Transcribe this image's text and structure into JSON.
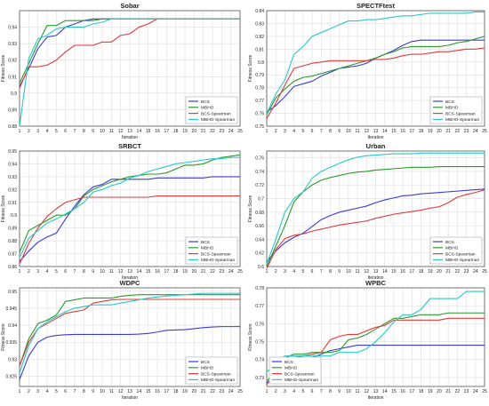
{
  "figure": {
    "xlabel": "Iteration",
    "ylabel": "Fitness Score"
  },
  "colors": {
    "BCS": "#3a3ad8",
    "MBHO": "#2a9a2a",
    "BCS-Spearman": "#e03a3a",
    "MBHO-Spearman": "#28c8c8"
  },
  "chart_data": [
    {
      "type": "line",
      "title": "Sobar",
      "xlabel": "Iteration",
      "ylabel": "Fitness Score",
      "x": [
        1,
        2,
        3,
        4,
        5,
        6,
        7,
        8,
        9,
        10,
        11,
        12,
        13,
        14,
        15,
        16,
        17,
        18,
        19,
        20,
        21,
        22,
        23,
        24,
        25
      ],
      "ylim": [
        0.88,
        0.95
      ],
      "yticks": [
        "0.88",
        "0.89",
        "0.9",
        "0.91",
        "0.92",
        "0.93",
        "0.94"
      ],
      "ytick_values": [
        0.88,
        0.89,
        0.9,
        0.91,
        0.92,
        0.93,
        0.94
      ],
      "legend": "bottom-right",
      "series": [
        {
          "name": "BCS",
          "values": [
            0.904,
            0.915,
            0.927,
            0.934,
            0.935,
            0.94,
            0.942,
            0.944,
            0.945,
            0.945,
            0.945,
            0.945,
            0.945,
            0.945,
            0.945,
            0.945,
            0.945,
            0.945,
            0.945,
            0.945,
            0.945,
            0.945,
            0.945,
            0.945,
            0.945
          ]
        },
        {
          "name": "MBHO",
          "values": [
            0.906,
            0.918,
            0.93,
            0.941,
            0.941,
            0.944,
            0.944,
            0.944,
            0.944,
            0.945,
            0.945,
            0.945,
            0.945,
            0.945,
            0.945,
            0.945,
            0.945,
            0.945,
            0.945,
            0.945,
            0.945,
            0.945,
            0.945,
            0.945,
            0.945
          ]
        },
        {
          "name": "BCS-Spearman",
          "values": [
            0.903,
            0.916,
            0.916,
            0.917,
            0.92,
            0.925,
            0.929,
            0.929,
            0.929,
            0.931,
            0.931,
            0.935,
            0.936,
            0.94,
            0.942,
            0.945,
            0.945,
            0.945,
            0.945,
            0.945,
            0.945,
            0.945,
            0.945,
            0.945,
            0.945
          ]
        },
        {
          "name": "MBHO-Spearman",
          "values": [
            0.88,
            0.921,
            0.933,
            0.935,
            0.939,
            0.94,
            0.94,
            0.94,
            0.942,
            0.943,
            0.945,
            0.945,
            0.945,
            0.945,
            0.945,
            0.945,
            0.945,
            0.945,
            0.945,
            0.945,
            0.945,
            0.945,
            0.945,
            0.945,
            0.945
          ]
        }
      ]
    },
    {
      "type": "line",
      "title": "SPECTFtest",
      "xlabel": "Iteration",
      "ylabel": "Fitness Score",
      "x": [
        1,
        2,
        3,
        4,
        5,
        6,
        7,
        8,
        9,
        10,
        11,
        12,
        13,
        14,
        15,
        16,
        17,
        18,
        19,
        20,
        21,
        22,
        23,
        24,
        25
      ],
      "ylim": [
        0.75,
        0.84
      ],
      "yticks": [
        "0.75",
        "0.76",
        "0.77",
        "0.78",
        "0.79",
        "0.8",
        "0.81",
        "0.82",
        "0.83",
        "0.84"
      ],
      "ytick_values": [
        0.75,
        0.76,
        0.77,
        0.78,
        0.79,
        0.8,
        0.81,
        0.82,
        0.83,
        0.84
      ],
      "legend": "bottom-right",
      "series": [
        {
          "name": "BCS",
          "values": [
            0.761,
            0.766,
            0.773,
            0.781,
            0.783,
            0.785,
            0.789,
            0.792,
            0.795,
            0.796,
            0.797,
            0.799,
            0.803,
            0.806,
            0.809,
            0.813,
            0.816,
            0.817,
            0.817,
            0.817,
            0.817,
            0.817,
            0.817,
            0.817,
            0.817
          ]
        },
        {
          "name": "MBHO",
          "values": [
            0.759,
            0.772,
            0.779,
            0.785,
            0.788,
            0.789,
            0.791,
            0.793,
            0.795,
            0.797,
            0.799,
            0.801,
            0.803,
            0.806,
            0.808,
            0.811,
            0.812,
            0.812,
            0.812,
            0.812,
            0.813,
            0.815,
            0.816,
            0.818,
            0.82
          ]
        },
        {
          "name": "BCS-Spearman",
          "values": [
            0.756,
            0.768,
            0.782,
            0.795,
            0.797,
            0.799,
            0.8,
            0.801,
            0.801,
            0.801,
            0.801,
            0.801,
            0.802,
            0.802,
            0.803,
            0.805,
            0.806,
            0.806,
            0.807,
            0.808,
            0.808,
            0.809,
            0.81,
            0.81,
            0.811
          ]
        },
        {
          "name": "MBHO-Spearman",
          "values": [
            0.76,
            0.775,
            0.786,
            0.806,
            0.812,
            0.82,
            0.823,
            0.826,
            0.829,
            0.832,
            0.832,
            0.833,
            0.833,
            0.834,
            0.835,
            0.836,
            0.836,
            0.837,
            0.838,
            0.838,
            0.838,
            0.838,
            0.838,
            0.839,
            0.839
          ]
        }
      ]
    },
    {
      "type": "line",
      "title": "SRBCT",
      "xlabel": "Iteration",
      "ylabel": "Fitness Score",
      "x": [
        1,
        2,
        3,
        4,
        5,
        6,
        7,
        8,
        9,
        10,
        11,
        12,
        13,
        14,
        15,
        16,
        17,
        18,
        19,
        20,
        21,
        22,
        23,
        24,
        25
      ],
      "ylim": [
        0.86,
        0.95
      ],
      "yticks": [
        "0.86",
        "0.87",
        "0.88",
        "0.89",
        "0.9",
        "0.91",
        "0.92",
        "0.93",
        "0.94",
        "0.95"
      ],
      "ytick_values": [
        0.86,
        0.87,
        0.88,
        0.89,
        0.9,
        0.91,
        0.92,
        0.93,
        0.94,
        0.95
      ],
      "legend": "bottom-right",
      "series": [
        {
          "name": "BCS",
          "values": [
            0.864,
            0.872,
            0.879,
            0.883,
            0.886,
            0.897,
            0.907,
            0.916,
            0.922,
            0.924,
            0.928,
            0.928,
            0.928,
            0.928,
            0.928,
            0.929,
            0.929,
            0.929,
            0.929,
            0.929,
            0.929,
            0.93,
            0.93,
            0.93,
            0.93
          ]
        },
        {
          "name": "MBHO",
          "values": [
            0.871,
            0.888,
            0.892,
            0.896,
            0.9,
            0.9,
            0.905,
            0.915,
            0.92,
            0.923,
            0.926,
            0.928,
            0.93,
            0.931,
            0.932,
            0.932,
            0.933,
            0.936,
            0.939,
            0.939,
            0.94,
            0.943,
            0.945,
            0.946,
            0.947
          ]
        },
        {
          "name": "BCS-Spearman",
          "values": [
            0.862,
            0.878,
            0.89,
            0.899,
            0.905,
            0.91,
            0.912,
            0.914,
            0.914,
            0.914,
            0.914,
            0.914,
            0.914,
            0.914,
            0.914,
            0.915,
            0.915,
            0.915,
            0.915,
            0.915,
            0.915,
            0.915,
            0.915,
            0.915,
            0.915
          ]
        },
        {
          "name": "MBHO-Spearman",
          "values": [
            0.867,
            0.882,
            0.888,
            0.894,
            0.897,
            0.901,
            0.905,
            0.91,
            0.918,
            0.92,
            0.923,
            0.925,
            0.929,
            0.931,
            0.934,
            0.936,
            0.938,
            0.94,
            0.941,
            0.942,
            0.943,
            0.944,
            0.944,
            0.945,
            0.945
          ]
        }
      ]
    },
    {
      "type": "line",
      "title": "Urban",
      "xlabel": "Iteration",
      "ylabel": "Fitness Score",
      "x": [
        1,
        2,
        3,
        4,
        5,
        6,
        7,
        8,
        9,
        10,
        11,
        12,
        13,
        14,
        15,
        16,
        17,
        18,
        19,
        20,
        21,
        22,
        23,
        24,
        25
      ],
      "ylim": [
        0.6,
        0.77
      ],
      "yticks": [
        "0.6",
        "0.62",
        "0.64",
        "0.66",
        "0.68",
        "0.7",
        "0.72",
        "0.74",
        "0.76"
      ],
      "ytick_values": [
        0.6,
        0.62,
        0.64,
        0.66,
        0.68,
        0.7,
        0.72,
        0.74,
        0.76
      ],
      "legend": "bottom-right",
      "series": [
        {
          "name": "BCS",
          "values": [
            0.607,
            0.623,
            0.635,
            0.643,
            0.649,
            0.659,
            0.669,
            0.675,
            0.68,
            0.683,
            0.686,
            0.689,
            0.694,
            0.698,
            0.701,
            0.704,
            0.705,
            0.707,
            0.708,
            0.709,
            0.71,
            0.711,
            0.712,
            0.713,
            0.714
          ]
        },
        {
          "name": "MBHO",
          "values": [
            0.6,
            0.63,
            0.66,
            0.695,
            0.71,
            0.72,
            0.727,
            0.731,
            0.734,
            0.737,
            0.739,
            0.74,
            0.742,
            0.743,
            0.744,
            0.745,
            0.746,
            0.746,
            0.746,
            0.747,
            0.747,
            0.747,
            0.747,
            0.747,
            0.747
          ]
        },
        {
          "name": "BCS-Spearman",
          "values": [
            0.597,
            0.625,
            0.641,
            0.646,
            0.648,
            0.652,
            0.655,
            0.658,
            0.661,
            0.663,
            0.665,
            0.667,
            0.671,
            0.674,
            0.677,
            0.679,
            0.681,
            0.683,
            0.686,
            0.688,
            0.694,
            0.702,
            0.706,
            0.709,
            0.713
          ]
        },
        {
          "name": "MBHO-Spearman",
          "values": [
            0.604,
            0.64,
            0.68,
            0.7,
            0.71,
            0.73,
            0.74,
            0.746,
            0.752,
            0.757,
            0.761,
            0.763,
            0.764,
            0.765,
            0.766,
            0.766,
            0.766,
            0.767,
            0.767,
            0.767,
            0.767,
            0.767,
            0.767,
            0.767,
            0.767
          ]
        }
      ]
    },
    {
      "type": "line",
      "title": "WDPC",
      "xlabel": "Iteration",
      "ylabel": "Fitness Score",
      "x": [
        1,
        2,
        3,
        4,
        5,
        6,
        7,
        8,
        9,
        10,
        11,
        12,
        13,
        14,
        15,
        16,
        17,
        18,
        19,
        20,
        21,
        22,
        23,
        24,
        25
      ],
      "ylim": [
        0.922,
        0.951
      ],
      "yticks": [
        "0.925",
        "0.93",
        "0.935",
        "0.94",
        "0.945",
        "0.95"
      ],
      "ytick_values": [
        0.925,
        0.93,
        0.935,
        0.94,
        0.945,
        0.95
      ],
      "legend": "bottom-right",
      "series": [
        {
          "name": "BCS",
          "values": [
            0.924,
            0.931,
            0.935,
            0.9365,
            0.937,
            0.9372,
            0.9373,
            0.9373,
            0.9373,
            0.9373,
            0.9373,
            0.9373,
            0.9373,
            0.9374,
            0.9376,
            0.938,
            0.9385,
            0.9386,
            0.9387,
            0.939,
            0.9393,
            0.9395,
            0.9396,
            0.9396,
            0.9396
          ]
        },
        {
          "name": "MBHO",
          "values": [
            0.928,
            0.936,
            0.9405,
            0.9415,
            0.943,
            0.947,
            0.9475,
            0.948,
            0.948,
            0.948,
            0.948,
            0.9485,
            0.9488,
            0.949,
            0.949,
            0.949,
            0.949,
            0.949,
            0.949,
            0.949,
            0.949,
            0.949,
            0.949,
            0.949,
            0.949
          ]
        },
        {
          "name": "BCS-Spearman",
          "values": [
            0.928,
            0.935,
            0.939,
            0.9405,
            0.942,
            0.9435,
            0.944,
            0.9445,
            0.9465,
            0.947,
            0.9475,
            0.9476,
            0.9476,
            0.9476,
            0.9476,
            0.9476,
            0.9476,
            0.9476,
            0.9476,
            0.9476,
            0.9476,
            0.9476,
            0.9476,
            0.9476,
            0.9476
          ]
        },
        {
          "name": "MBHO-Spearman",
          "values": [
            0.926,
            0.934,
            0.939,
            0.941,
            0.9425,
            0.944,
            0.945,
            0.9455,
            0.946,
            0.946,
            0.946,
            0.9465,
            0.947,
            0.9475,
            0.948,
            0.9483,
            0.9486,
            0.9488,
            0.949,
            0.9492,
            0.9494,
            0.9494,
            0.9494,
            0.9494,
            0.9494
          ]
        }
      ]
    },
    {
      "type": "line",
      "title": "WPBC",
      "xlabel": "Iteration",
      "ylabel": "Fitness Score",
      "x": [
        1,
        2,
        3,
        4,
        5,
        6,
        7,
        8,
        9,
        10,
        11,
        12,
        13,
        14,
        15,
        16,
        17,
        18,
        19,
        20,
        21,
        22,
        23,
        24,
        25
      ],
      "ylim": [
        0.725,
        0.78
      ],
      "yticks": [
        "0.73",
        "0.74",
        "0.75",
        "0.76",
        "0.77",
        "0.78"
      ],
      "ytick_values": [
        0.73,
        0.74,
        0.75,
        0.76,
        0.77,
        0.78
      ],
      "legend": "bottom-left",
      "series": [
        {
          "name": "BCS",
          "values": [
            0.727,
            0.731,
            0.735,
            0.738,
            0.74,
            0.741,
            0.743,
            0.745,
            0.746,
            0.747,
            0.748,
            0.748,
            0.748,
            0.748,
            0.748,
            0.748,
            0.748,
            0.748,
            0.748,
            0.748,
            0.748,
            0.748,
            0.748,
            0.748,
            0.748
          ]
        },
        {
          "name": "MBHO",
          "values": [
            0.728,
            0.733,
            0.741,
            0.743,
            0.743,
            0.744,
            0.744,
            0.744,
            0.745,
            0.751,
            0.752,
            0.754,
            0.757,
            0.76,
            0.763,
            0.763,
            0.764,
            0.765,
            0.765,
            0.765,
            0.766,
            0.766,
            0.766,
            0.766,
            0.766
          ]
        },
        {
          "name": "BCS-Spearman",
          "values": [
            0.726,
            0.733,
            0.738,
            0.741,
            0.742,
            0.743,
            0.744,
            0.751,
            0.753,
            0.754,
            0.754,
            0.756,
            0.758,
            0.759,
            0.762,
            0.762,
            0.762,
            0.762,
            0.762,
            0.762,
            0.763,
            0.763,
            0.763,
            0.763,
            0.763
          ]
        },
        {
          "name": "MBHO-Spearman",
          "values": [
            0.733,
            0.738,
            0.742,
            0.742,
            0.742,
            0.742,
            0.742,
            0.742,
            0.744,
            0.744,
            0.744,
            0.746,
            0.75,
            0.755,
            0.761,
            0.765,
            0.765,
            0.768,
            0.774,
            0.774,
            0.774,
            0.774,
            0.778,
            0.778,
            0.778
          ]
        }
      ]
    }
  ]
}
